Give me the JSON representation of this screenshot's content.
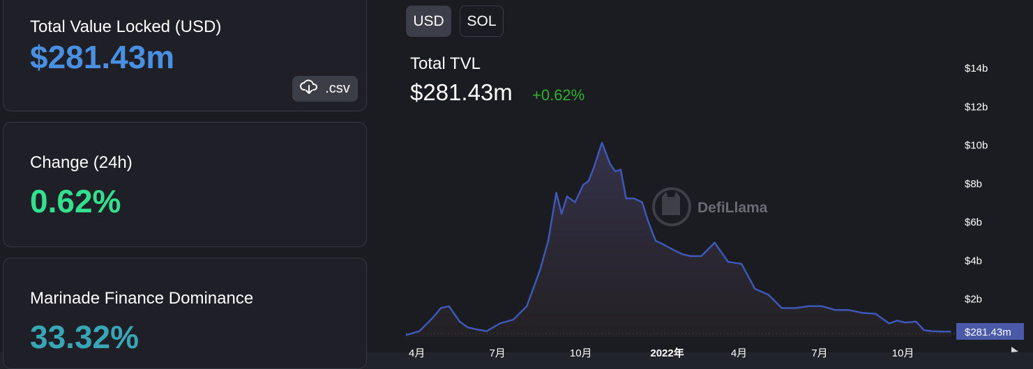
{
  "stats": {
    "tvl_label": "Total Value Locked (USD)",
    "tvl_value": "$281.43m",
    "csv_label": ".csv",
    "change_label": "Change (24h)",
    "change_value": "0.62%",
    "dominance_label": "Marinade Finance Dominance",
    "dominance_value": "33.32%"
  },
  "colors": {
    "tvl": "#4a90e2",
    "change": "#33e08f",
    "dominance": "#38a6b4",
    "line": "#3e58b8",
    "positive": "#2bb32b"
  },
  "toggles": {
    "usd": "USD",
    "sol": "SOL"
  },
  "chart": {
    "title": "Total TVL",
    "value": "$281.43m",
    "change": "+0.62%",
    "watermark": "DefiLlama",
    "current_label": "$281.43m"
  },
  "chart_data": {
    "type": "area",
    "title": "Total TVL",
    "x_tick_labels": [
      "4月",
      "7月",
      "10月",
      "2022年",
      "4月",
      "7月",
      "10月"
    ],
    "y_tick_labels": [
      "$2b",
      "$4b",
      "$6b",
      "$8b",
      "$10b",
      "$12b",
      "$14b"
    ],
    "y_unit": "USD billions",
    "ylim": [
      0,
      14
    ],
    "x_range_months": [
      0,
      20.5
    ],
    "x_ticks_month": [
      0,
      3,
      6,
      9,
      12,
      15,
      18
    ],
    "series": [
      {
        "x": [
          0,
          0.5,
          1,
          1.3,
          1.6,
          2.0,
          2.3,
          2.6,
          3.0,
          3.5,
          4.0,
          4.5,
          5.0,
          5.3,
          5.6,
          5.8,
          6.0,
          6.3,
          6.6,
          6.8,
          7.0,
          7.3,
          7.6,
          7.8,
          8.0,
          8.2,
          8.5,
          8.8,
          9.0,
          9.3,
          9.6,
          10.0,
          10.3,
          10.6,
          11.0,
          11.5,
          12.0,
          12.5,
          13.0,
          13.5,
          14.0,
          14.5,
          15.0,
          15.5,
          16.0,
          16.5,
          17.0,
          17.5,
          18.0,
          18.3,
          18.6,
          19.0,
          19.3,
          19.6,
          20.0,
          20.3
        ],
        "y": [
          0.1,
          0.3,
          1.0,
          1.5,
          1.6,
          0.8,
          0.5,
          0.4,
          0.3,
          0.7,
          0.9,
          1.6,
          3.5,
          5.0,
          7.5,
          6.4,
          7.3,
          7.0,
          7.9,
          8.1,
          8.8,
          10.1,
          9.0,
          8.6,
          8.7,
          7.2,
          7.2,
          7.0,
          6.1,
          5.0,
          4.8,
          4.5,
          4.3,
          4.2,
          4.2,
          4.9,
          3.9,
          3.8,
          2.5,
          2.2,
          1.5,
          1.5,
          1.6,
          1.6,
          1.4,
          1.4,
          1.25,
          1.2,
          0.7,
          0.85,
          0.75,
          0.8,
          0.35,
          0.3,
          0.28,
          0.28
        ]
      }
    ],
    "current_value": 0.28143
  }
}
